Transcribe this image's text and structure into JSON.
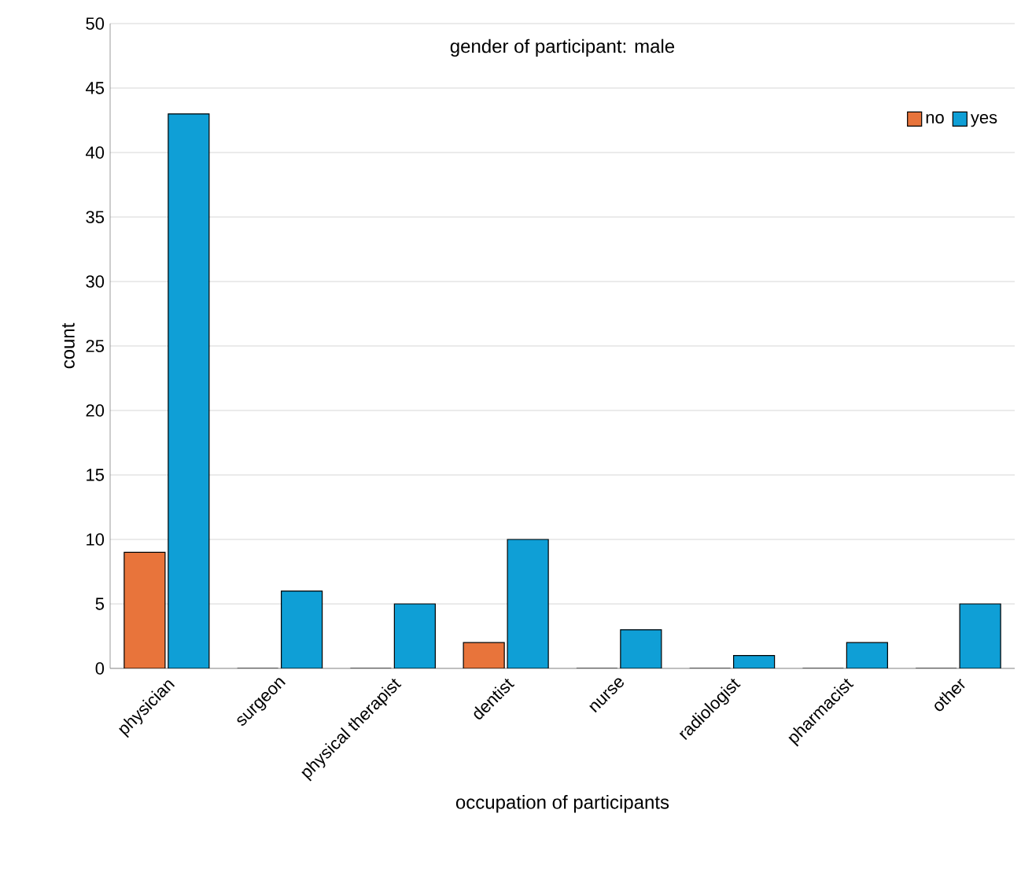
{
  "chart_data": {
    "type": "bar",
    "title": "gender of participant: male",
    "xlabel": "occupation of participants",
    "ylabel": "count",
    "categories": [
      "physician",
      "surgeon",
      "physical therapist",
      "dentist",
      "nurse",
      "radiologist",
      "pharmacist",
      "other"
    ],
    "series": [
      {
        "name": "no",
        "color": "#e8743b",
        "values": [
          9,
          0,
          0,
          2,
          0,
          0,
          0,
          0
        ]
      },
      {
        "name": "yes",
        "color": "#0f9fd6",
        "values": [
          43,
          6,
          5,
          10,
          3,
          1,
          2,
          5
        ]
      }
    ],
    "ylim": [
      0,
      50
    ],
    "yticks": [
      0,
      5,
      10,
      15,
      20,
      25,
      30,
      35,
      40,
      45,
      50
    ],
    "grid": "y",
    "legend": "top right"
  }
}
